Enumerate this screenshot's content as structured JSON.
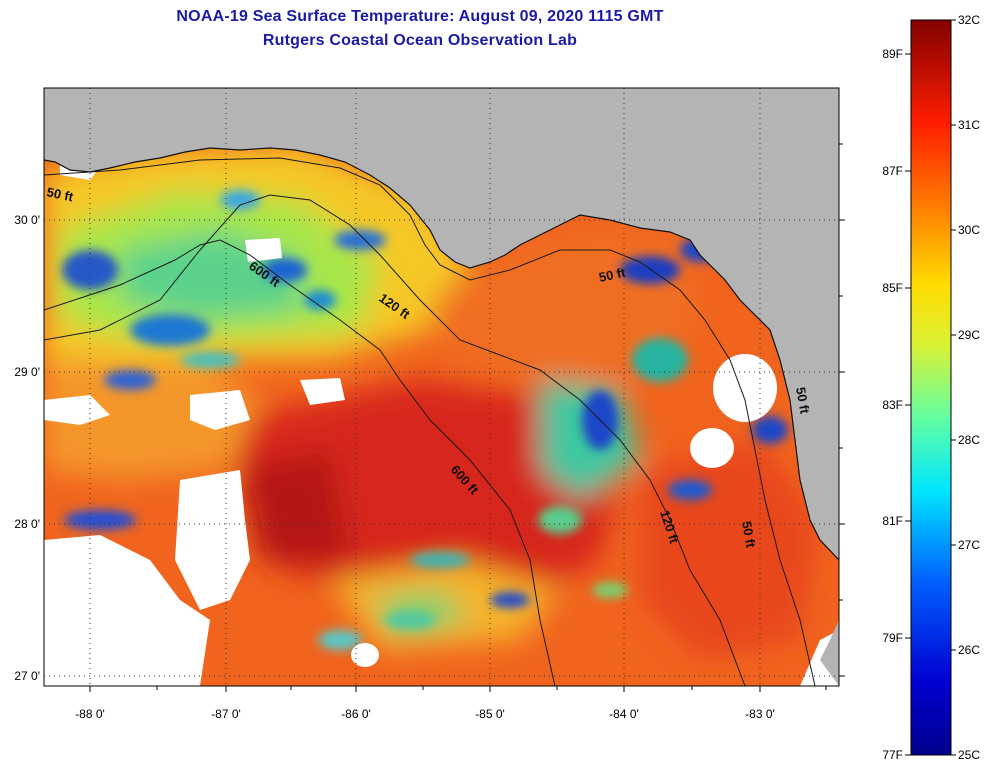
{
  "title": {
    "line1": "NOAA-19 Sea Surface Temperature:  August 09, 2020 1115 GMT",
    "line2": "Rutgers Coastal Ocean Observation Lab"
  },
  "map": {
    "lon_ticks": [
      "-88 0'",
      "-87 0'",
      "-86 0'",
      "-85 0'",
      "-84 0'",
      "-83 0'"
    ],
    "lat_ticks": [
      "30 0'",
      "29 0'",
      "28 0'",
      "27 0'"
    ],
    "contour_labels": [
      "50 ft",
      "600 ft",
      "120 ft",
      "50 ft",
      "600 ft",
      "120 ft",
      "50 ft",
      "50 ft"
    ],
    "colors": {
      "land": "#b4b4b4",
      "cloud": "#ffffff",
      "ocean_warm": "#f05a1e",
      "ocean_hot": "#d21e14",
      "ocean_mid": "#f5be28",
      "ocean_cool": "#9be048",
      "ocean_cold": "#1e50d2"
    }
  },
  "colorbar": {
    "fahrenheit_labels": [
      "89F",
      "87F",
      "85F",
      "83F",
      "81F",
      "79F",
      "77F"
    ],
    "celsius_labels": [
      "32C",
      "31C",
      "30C",
      "29C",
      "28C",
      "27C",
      "26C",
      "25C"
    ],
    "range_c": [
      25,
      32
    ],
    "range_f": [
      77,
      89.6
    ]
  }
}
